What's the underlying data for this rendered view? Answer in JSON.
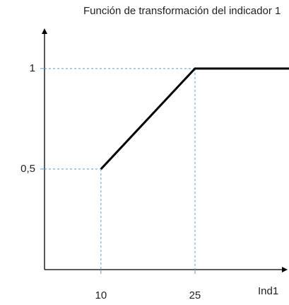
{
  "chart_data": {
    "type": "line",
    "title": "Función de transformación del indicador 1",
    "x_label": "Ind1",
    "x": [
      10,
      25,
      40
    ],
    "series": [
      {
        "color": "#000000",
        "values": [
          0.5,
          1,
          1
        ]
      }
    ],
    "xlim": [
      1,
      40
    ],
    "ylim": [
      0,
      1.2
    ],
    "xticks": [
      10,
      25
    ],
    "yticks": [
      {
        "value": 0.5,
        "label": "0,5"
      },
      1
    ],
    "guides": true,
    "guide_color": "#5b9bd5"
  }
}
